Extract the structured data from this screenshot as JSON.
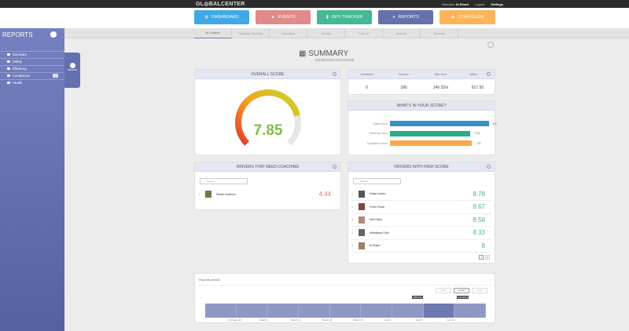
{
  "header": {
    "logo": "GL◎BALCENTER",
    "welcome": "Welcome",
    "user": "Al Eriani",
    "logout": "Logout",
    "settings": "Settings"
  },
  "nav": [
    {
      "label": "DASHBOARD",
      "color": "#3fa9e6",
      "icon": "globe-icon"
    },
    {
      "label": "EVENTS",
      "color": "#e08a8a",
      "icon": "warning-icon"
    },
    {
      "label": "GPS TRACKER",
      "color": "#45b896",
      "icon": "map-pin-icon"
    },
    {
      "label": "REPORTS",
      "color": "#6670aa",
      "icon": "pie-chart-icon",
      "active": true
    },
    {
      "label": "CONFIGURE",
      "color": "#fbb45a",
      "icon": "user-icon"
    }
  ],
  "subtabs": [
    "All Locations",
    "Trafficking / Speeding",
    "Connections",
    "Vehicles",
    "Trade Co.",
    "Business",
    "Terminals"
  ],
  "sidebar": {
    "title": "REPORTS",
    "items": [
      {
        "label": "Summary"
      },
      {
        "label": "Safety"
      },
      {
        "label": "Efficiency"
      },
      {
        "label": "Compliance"
      },
      {
        "label": "Health"
      }
    ],
    "flyout_label": "REPORTS"
  },
  "page": {
    "title": "SUMMARY",
    "dates": "(04/08/2018-04/14/2018)"
  },
  "overall": {
    "title": "OVERALL SCORE",
    "score": "7.85",
    "fraction": 0.785
  },
  "stats": {
    "headers": [
      "Incidents",
      "Events",
      "Idle time",
      "Miles"
    ],
    "values": [
      "0",
      "186",
      "14h 32m",
      "817.55"
    ]
  },
  "breakdown": {
    "title": "WHAT'S IN YOUR SCORE?",
    "bars": [
      {
        "label": "Safety Score",
        "value": "8.9",
        "num": 8.9,
        "color": "#3a8fc9"
      },
      {
        "label": "Efficiency Score",
        "value": "7.24",
        "num": 7.24,
        "color": "#2bab8a"
      },
      {
        "label": "Compliance Score",
        "value": "7.37",
        "num": 7.37,
        "color": "#f7a94a"
      }
    ]
  },
  "coaching": {
    "title": "DRIVERS THAT NEED COACHING",
    "search_placeholder": "Search",
    "drivers": [
      {
        "rank": "1",
        "name": "Stefan Radeciu",
        "score": "4.44"
      }
    ]
  },
  "high": {
    "title": "DRIVERS WITH HIGH SCORE",
    "search_placeholder": "Search",
    "drivers": [
      {
        "rank": "1",
        "name": "Nolan Kysea",
        "score": "8.78"
      },
      {
        "rank": "2",
        "name": "Florin Resel",
        "score": "8.67"
      },
      {
        "rank": "3",
        "name": "Neil Dillon",
        "score": "8.58"
      },
      {
        "rank": "4",
        "name": "Mihalkeas Odin",
        "score": "8.33"
      },
      {
        "rank": "5",
        "name": "Al Bristri",
        "score": "8"
      }
    ],
    "pages": [
      "1",
      "2"
    ]
  },
  "period": {
    "title": "Reports period",
    "buttons": [
      "daily",
      "weekly",
      "month"
    ],
    "ticks": [
      "February 26",
      "March 4",
      "March 11",
      "March 18",
      "March 25",
      "April 1",
      "April 8",
      "April 15"
    ],
    "start_label": "4/8/2018",
    "end_label": "4/14/2018"
  }
}
